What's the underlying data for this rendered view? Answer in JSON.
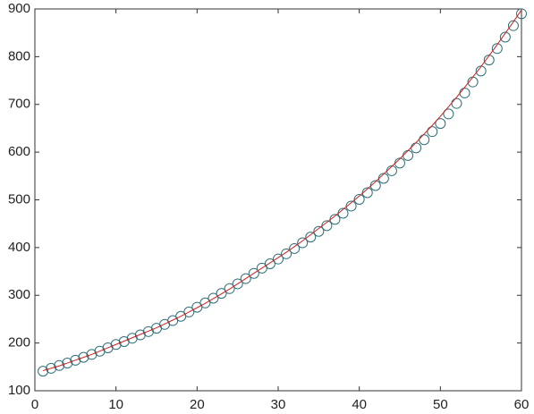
{
  "chart_data": {
    "type": "scatter",
    "x": [
      1,
      2,
      3,
      4,
      5,
      6,
      7,
      8,
      9,
      10,
      11,
      12,
      13,
      14,
      15,
      16,
      17,
      18,
      19,
      20,
      21,
      22,
      23,
      24,
      25,
      26,
      27,
      28,
      29,
      30,
      31,
      32,
      33,
      34,
      35,
      36,
      37,
      38,
      39,
      40,
      41,
      42,
      43,
      44,
      45,
      46,
      47,
      48,
      49,
      50,
      51,
      52,
      53,
      54,
      55,
      56,
      57,
      58,
      59,
      60
    ],
    "series": [
      {
        "color": "#2f6f78",
        "values": [
          141,
          147,
          153,
          158,
          164,
          170,
          176,
          183,
          190,
          197,
          203,
          210,
          217,
          224,
          231,
          239,
          247,
          256,
          265,
          275,
          284,
          294,
          304,
          314,
          324,
          335,
          346,
          357,
          366,
          376,
          387,
          398,
          410,
          422,
          434,
          446,
          459,
          472,
          487,
          501,
          515,
          530,
          545,
          561,
          577,
          593,
          609,
          626,
          643,
          660,
          680,
          702,
          724,
          747,
          770,
          793,
          817,
          841,
          865,
          890
        ]
      },
      {
        "type": "line",
        "color": "#d02020",
        "values": [
          142,
          147,
          152,
          158,
          164,
          170,
          176,
          183,
          190,
          197,
          204,
          211,
          218,
          225,
          232,
          240,
          248,
          256,
          265,
          274,
          283,
          293,
          303,
          313,
          324,
          335,
          346,
          357,
          368,
          379,
          390,
          402,
          414,
          427,
          440,
          453,
          466,
          480,
          494,
          508,
          523,
          538,
          554,
          570,
          586,
          603,
          620,
          638,
          656,
          675,
          695,
          715,
          736,
          757,
          779,
          802,
          825,
          849,
          873,
          898
        ]
      }
    ],
    "xlim": [
      0,
      60
    ],
    "xticks": [
      0,
      10,
      20,
      30,
      40,
      50,
      60
    ],
    "ylim": [
      100,
      900
    ],
    "yticks": [
      100,
      200,
      300,
      400,
      500,
      600,
      700,
      800,
      900
    ]
  }
}
